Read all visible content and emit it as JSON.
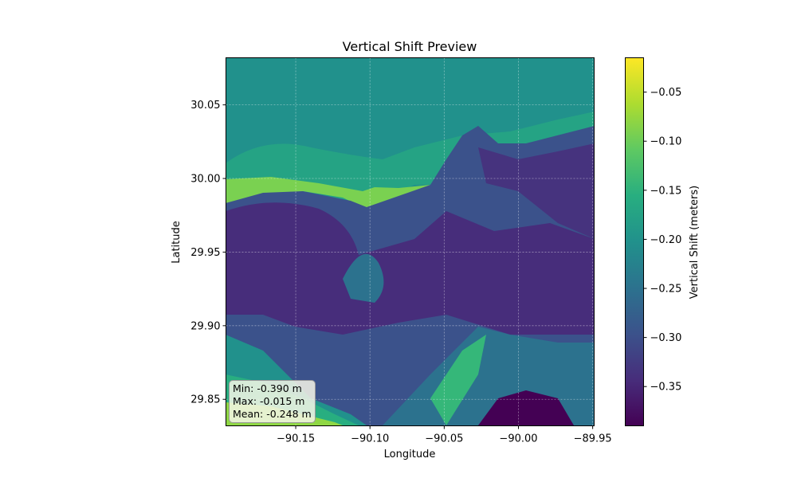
{
  "chart_data": {
    "type": "heatmap",
    "title": "Vertical Shift Preview",
    "xlabel": "Longitude",
    "ylabel": "Latitude",
    "xlim": [
      -90.197,
      -89.949
    ],
    "ylim": [
      29.832,
      30.082
    ],
    "x_ticks": [
      {
        "value": -90.15,
        "label": "−90.15"
      },
      {
        "value": -90.1,
        "label": "−90.10"
      },
      {
        "value": -90.05,
        "label": "−90.05"
      },
      {
        "value": -90.0,
        "label": "−90.00"
      },
      {
        "value": -89.95,
        "label": "−89.95"
      }
    ],
    "y_ticks": [
      {
        "value": 29.85,
        "label": "29.85"
      },
      {
        "value": 29.9,
        "label": "29.90"
      },
      {
        "value": 29.95,
        "label": "29.95"
      },
      {
        "value": 30.0,
        "label": "30.00"
      },
      {
        "value": 30.05,
        "label": "30.05"
      }
    ],
    "grid": true,
    "colormap": "viridis",
    "colorbar": {
      "label": "Vertical Shift (meters)",
      "range": [
        -0.39,
        -0.015
      ],
      "ticks": [
        {
          "value": -0.05,
          "label": "−0.05"
        },
        {
          "value": -0.1,
          "label": "−0.10"
        },
        {
          "value": -0.15,
          "label": "−0.15"
        },
        {
          "value": -0.2,
          "label": "−0.20"
        },
        {
          "value": -0.25,
          "label": "−0.25"
        },
        {
          "value": -0.3,
          "label": "−0.30"
        },
        {
          "value": -0.35,
          "label": "−0.35"
        }
      ]
    },
    "stats": {
      "min": "Min: -0.390 m",
      "max": "Max: -0.015 m",
      "mean": "Mean: -0.248 m"
    }
  }
}
